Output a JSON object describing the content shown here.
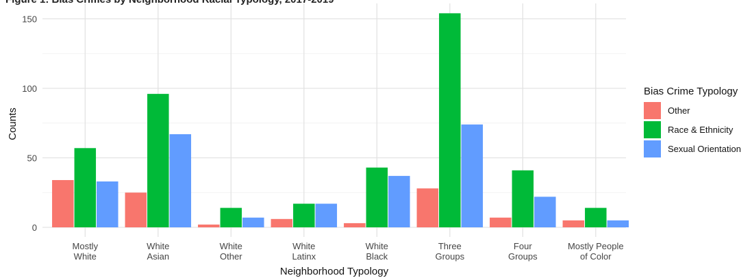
{
  "chart_data": {
    "type": "bar",
    "title": "Figure 1: Bias Crimes by Neighborhood Racial Typology, 2017-2019",
    "xlabel": "Neighborhood Typology",
    "ylabel": "Counts",
    "ylim": [
      0,
      160
    ],
    "yticks": [
      0,
      50,
      100,
      150
    ],
    "grid": true,
    "legend_position": "right",
    "legend_title": "Bias Crime Typology",
    "categories": [
      [
        "Mostly",
        "White"
      ],
      [
        "White",
        "Asian"
      ],
      [
        "White",
        "Other"
      ],
      [
        "White",
        "Latinx"
      ],
      [
        "White",
        "Black"
      ],
      [
        "Three",
        "Groups"
      ],
      [
        "Four",
        "Groups"
      ],
      [
        "Mostly People",
        "of Color"
      ]
    ],
    "series": [
      {
        "name": "Other",
        "color": "#F8766D",
        "values": [
          34,
          25,
          2,
          6,
          3,
          28,
          7,
          5
        ]
      },
      {
        "name": "Race & Ethnicity",
        "color": "#00BA38",
        "values": [
          57,
          96,
          14,
          17,
          43,
          154,
          41,
          14
        ]
      },
      {
        "name": "Sexual Orientation",
        "color": "#619CFF",
        "values": [
          33,
          67,
          7,
          17,
          37,
          74,
          22,
          5
        ]
      }
    ]
  }
}
